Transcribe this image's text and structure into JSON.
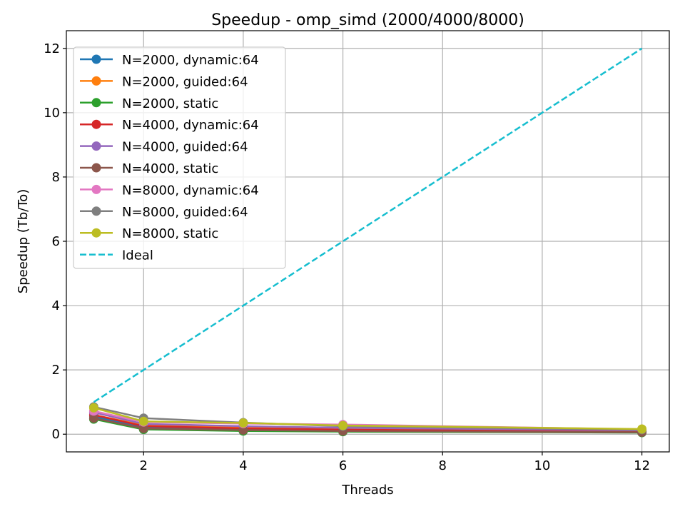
{
  "chart_data": {
    "type": "line",
    "title": "Speedup - omp_simd (2000/4000/8000)",
    "xlabel": "Threads",
    "ylabel": "Speedup (Tb/To)",
    "xlim": [
      0.45,
      12.55
    ],
    "ylim": [
      -0.55,
      12.55
    ],
    "xticks": [
      2,
      4,
      6,
      8,
      10,
      12
    ],
    "yticks": [
      0,
      2,
      4,
      6,
      8,
      10,
      12
    ],
    "grid": true,
    "legend_position": "upper-left",
    "x": [
      1,
      2,
      4,
      6,
      12
    ],
    "series": [
      {
        "name": "N=2000, dynamic:64",
        "color": "#1f77b4",
        "marker": "circle",
        "values": [
          0.55,
          0.22,
          0.15,
          0.12,
          0.08
        ]
      },
      {
        "name": "N=2000, guided:64",
        "color": "#ff7f0e",
        "marker": "circle",
        "values": [
          0.6,
          0.28,
          0.2,
          0.15,
          0.1
        ]
      },
      {
        "name": "N=2000, static",
        "color": "#2ca02c",
        "marker": "circle",
        "values": [
          0.47,
          0.15,
          0.1,
          0.08,
          0.05
        ]
      },
      {
        "name": "N=4000, dynamic:64",
        "color": "#d62728",
        "marker": "circle",
        "values": [
          0.6,
          0.25,
          0.18,
          0.14,
          0.09
        ]
      },
      {
        "name": "N=4000, guided:64",
        "color": "#9467bd",
        "marker": "circle",
        "values": [
          0.68,
          0.32,
          0.25,
          0.2,
          0.12
        ]
      },
      {
        "name": "N=4000, static",
        "color": "#8c564b",
        "marker": "circle",
        "values": [
          0.5,
          0.18,
          0.13,
          0.1,
          0.06
        ]
      },
      {
        "name": "N=8000, dynamic:64",
        "color": "#e377c2",
        "marker": "circle",
        "values": [
          0.72,
          0.38,
          0.33,
          0.3,
          0.15
        ]
      },
      {
        "name": "N=8000, guided:64",
        "color": "#7f7f7f",
        "marker": "circle",
        "values": [
          0.85,
          0.5,
          0.36,
          0.25,
          0.14
        ]
      },
      {
        "name": "N=8000, static",
        "color": "#bcbd22",
        "marker": "circle",
        "values": [
          0.82,
          0.4,
          0.35,
          0.27,
          0.16
        ]
      },
      {
        "name": "Ideal",
        "color": "#17becf",
        "marker": "none",
        "dashed": true,
        "values": [
          1,
          2,
          4,
          6,
          12
        ]
      }
    ]
  }
}
